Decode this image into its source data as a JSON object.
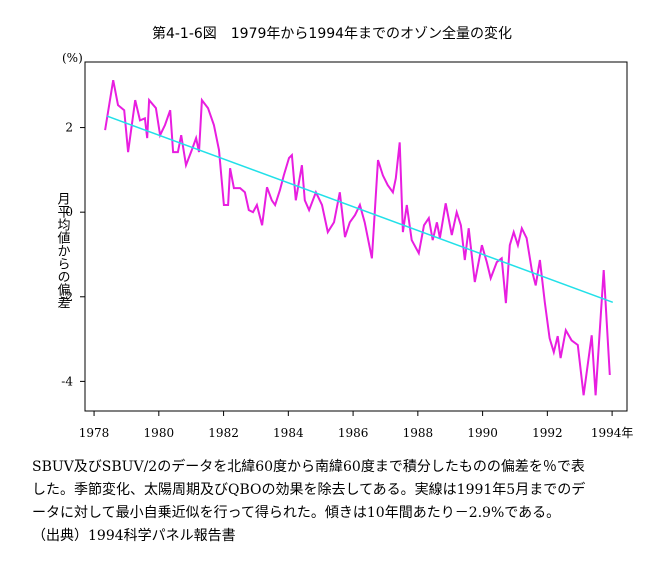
{
  "chart_data": {
    "type": "line",
    "title": "第4-1-6図　1979年から1994年までのオゾン全量の変化",
    "y_label": "月平均値からの偏差",
    "y_unit": "(%)",
    "xlim": [
      1977.72,
      1994.46
    ],
    "xticks": [
      1978,
      1980,
      1982,
      1984,
      1986,
      1988,
      1990,
      1992,
      {
        "value": 1994,
        "label": "1994年"
      }
    ],
    "ylim": [
      -4.7,
      3.55
    ],
    "yticks": [
      -4,
      -2,
      0,
      2
    ],
    "series": [
      {
        "color": "#e81ee0",
        "x": [
          1978.34,
          1978.59,
          1978.74,
          1978.93,
          1979.05,
          1979.27,
          1979.42,
          1979.57,
          1979.64,
          1979.7,
          1979.91,
          1980.04,
          1980.19,
          1980.35,
          1980.44,
          1980.59,
          1980.69,
          1980.84,
          1981.02,
          1981.15,
          1981.24,
          1981.33,
          1981.52,
          1981.7,
          1981.86,
          1982.01,
          1982.14,
          1982.2,
          1982.32,
          1982.51,
          1982.66,
          1982.78,
          1982.91,
          1983.03,
          1983.19,
          1983.34,
          1983.49,
          1983.59,
          1983.74,
          1983.86,
          1984.02,
          1984.11,
          1984.23,
          1984.42,
          1984.51,
          1984.64,
          1984.85,
          1985.04,
          1985.22,
          1985.41,
          1985.59,
          1985.75,
          1985.9,
          1986.06,
          1986.21,
          1986.36,
          1986.58,
          1986.77,
          1986.92,
          1987.07,
          1987.23,
          1987.32,
          1987.44,
          1987.54,
          1987.66,
          1987.81,
          1988.03,
          1988.19,
          1988.34,
          1988.46,
          1988.59,
          1988.68,
          1988.86,
          1989.05,
          1989.2,
          1989.33,
          1989.45,
          1989.57,
          1989.76,
          1989.98,
          1990.13,
          1990.25,
          1990.44,
          1990.59,
          1990.72,
          1990.84,
          1990.96,
          1991.09,
          1991.21,
          1991.36,
          1991.52,
          1991.64,
          1991.77,
          1991.92,
          1992.07,
          1992.2,
          1992.32,
          1992.41,
          1992.57,
          1992.75,
          1992.94,
          1993.12,
          1993.37,
          1993.49,
          1993.74,
          1993.93
        ],
        "values": [
          1.94,
          3.12,
          2.53,
          2.41,
          1.42,
          2.65,
          2.17,
          2.22,
          1.75,
          2.65,
          2.46,
          1.82,
          2.06,
          2.41,
          1.42,
          1.42,
          1.82,
          1.11,
          1.47,
          1.75,
          1.42,
          2.65,
          2.46,
          2.06,
          1.47,
          0.17,
          0.17,
          1.04,
          0.57,
          0.57,
          0.47,
          0.05,
          0,
          0.17,
          -0.31,
          0.59,
          0.28,
          0.17,
          0.52,
          0.87,
          1.28,
          1.35,
          0.28,
          1.11,
          0.28,
          0.05,
          0.47,
          0.17,
          -0.47,
          -0.24,
          0.47,
          -0.59,
          -0.24,
          -0.07,
          0.17,
          -0.24,
          -1.09,
          1.23,
          0.87,
          0.64,
          0.47,
          0.8,
          1.65,
          -0.47,
          0.17,
          -0.66,
          -0.97,
          -0.31,
          -0.14,
          -0.66,
          -0.24,
          -0.61,
          0.21,
          -0.54,
          0,
          -0.31,
          -1.13,
          -0.38,
          -1.65,
          -0.78,
          -1.18,
          -1.56,
          -1.18,
          -1.09,
          -2.15,
          -0.78,
          -0.47,
          -0.78,
          -0.38,
          -0.61,
          -1.37,
          -1.73,
          -1.13,
          -2.13,
          -2.98,
          -3.31,
          -2.93,
          -3.45,
          -2.79,
          -3.03,
          -3.14,
          -4.33,
          -2.91,
          -4.33,
          -1.37,
          -3.85
        ]
      },
      {
        "color": "#22e0e8",
        "x": [
          1978.4,
          1994.02
        ],
        "values": [
          2.27,
          -2.13
        ]
      }
    ]
  },
  "caption": [
    "SBUV及びSBUV/2のデータを北緯60度から南緯60度まで積分したものの偏差を％で表",
    "した。季節変化、太陽周期及びQBOの効果を除去してある。実線は1991年5月までのデ",
    "ータに対して最小自乗近似を行って得られた。傾きは10年間あたり－2.9%である。",
    "（出典）1994科学パネル報告書"
  ]
}
